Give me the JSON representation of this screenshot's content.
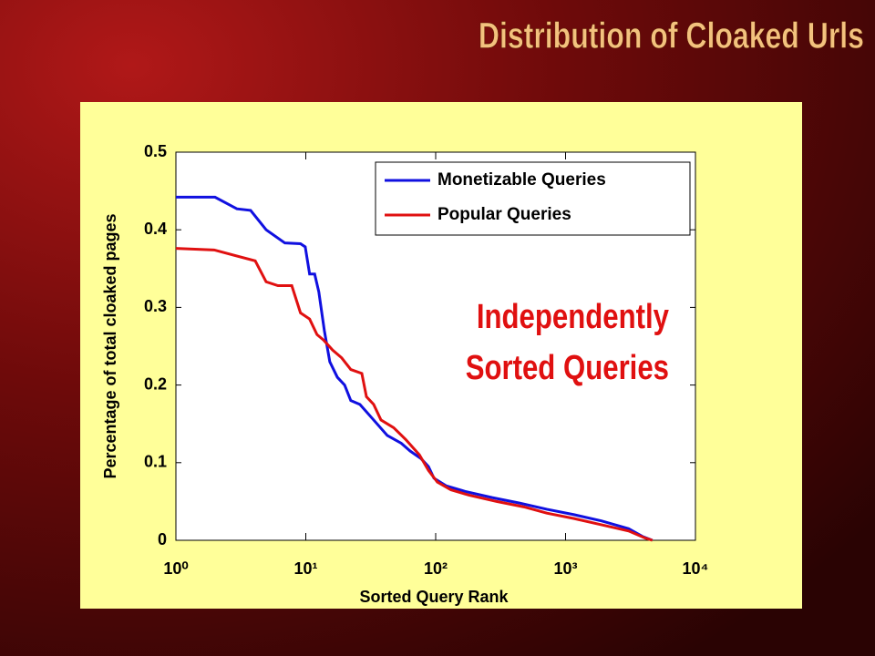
{
  "chart_data": {
    "type": "line",
    "title": "Distribution of Cloaked Urls",
    "xlabel": "Sorted Query Rank",
    "ylabel": "Percentage of total cloaked pages",
    "annotation": [
      "Independently",
      "Sorted Queries"
    ],
    "xscale": "log",
    "xlim": [
      1,
      10000
    ],
    "xticks": [
      {
        "value": 1,
        "label": "10⁰"
      },
      {
        "value": 10,
        "label": "10¹"
      },
      {
        "value": 100,
        "label": "10²"
      },
      {
        "value": 1000,
        "label": "10³"
      },
      {
        "value": 10000,
        "label": "10⁴"
      }
    ],
    "ylim": [
      0,
      0.5
    ],
    "yticks": [
      0,
      0.1,
      0.2,
      0.3,
      0.4,
      0.5
    ],
    "grid": false,
    "legend": "upper right",
    "series": [
      {
        "name": "Monetizable Queries",
        "color": "#1010e0",
        "x": [
          1,
          2,
          2.95,
          3.76,
          4.95,
          6.9,
          9.1,
          9.9,
          10.7,
          11.7,
          12.6,
          13.9,
          15.3,
          17.5,
          19.9,
          22.2,
          26.1,
          33.3,
          42.4,
          54.3,
          63.6,
          77.4,
          88,
          97,
          121,
          168,
          272,
          441,
          717,
          1163,
          1886,
          3060,
          3900,
          4660
        ],
        "values": [
          0.442,
          0.442,
          0.427,
          0.425,
          0.4,
          0.383,
          0.382,
          0.378,
          0.343,
          0.343,
          0.32,
          0.27,
          0.23,
          0.21,
          0.2,
          0.18,
          0.175,
          0.155,
          0.135,
          0.125,
          0.115,
          0.105,
          0.095,
          0.08,
          0.07,
          0.063,
          0.055,
          0.048,
          0.04,
          0.033,
          0.025,
          0.015,
          0.005,
          0
        ]
      },
      {
        "name": "Popular Queries",
        "color": "#e01010",
        "x": [
          1,
          1.97,
          4.08,
          4.95,
          6.1,
          7.8,
          9.1,
          10.7,
          12.2,
          13.7,
          16.1,
          18.9,
          22.2,
          27,
          29.3,
          33.3,
          37.9,
          47.5,
          58.7,
          75,
          88,
          103,
          131,
          182,
          295,
          478,
          717,
          1163,
          1886,
          3060,
          4090,
          4660
        ],
        "values": [
          0.376,
          0.374,
          0.36,
          0.333,
          0.328,
          0.328,
          0.293,
          0.285,
          0.265,
          0.258,
          0.245,
          0.235,
          0.22,
          0.215,
          0.185,
          0.175,
          0.155,
          0.145,
          0.13,
          0.11,
          0.09,
          0.075,
          0.065,
          0.058,
          0.05,
          0.043,
          0.035,
          0.028,
          0.02,
          0.012,
          0.003,
          0
        ]
      }
    ]
  }
}
